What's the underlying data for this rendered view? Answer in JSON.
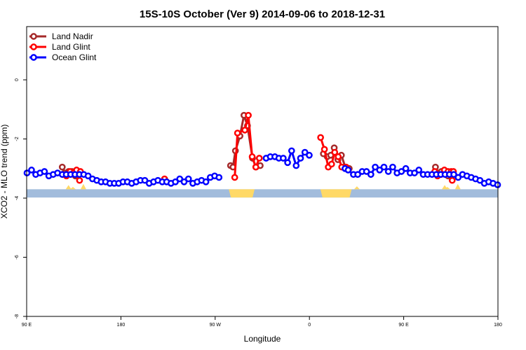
{
  "chart_data": {
    "type": "line",
    "title": "15S-10S October (Ver 9)   2014-09-06 to 2018-12-31",
    "xlabel": "Longitude",
    "ylabel": "XCO2 - MLO trend (ppm)",
    "xlim": [
      -90,
      180
    ],
    "ylim": [
      -8,
      1.8
    ],
    "x_ticks": [
      {
        "value": -90,
        "label": "90 E"
      },
      {
        "value": -36,
        "label": "180"
      },
      {
        "value": 18,
        "label": "90 W"
      },
      {
        "value": 72,
        "label": "0"
      },
      {
        "value": 126,
        "label": "90 E"
      },
      {
        "value": 180,
        "label": "180"
      }
    ],
    "y_ticks": [
      0,
      -2,
      -4,
      -6,
      -8
    ],
    "legend_position": "top-left",
    "series": [
      {
        "name": "Land Nadir",
        "color": "#a52a2a",
        "segments": [
          [
            [
              -69.6,
              -2.95
            ],
            [
              -68.2,
              -3.15
            ],
            [
              -66,
              -3.1
            ],
            [
              -64,
              -3.1
            ],
            [
              -62.1,
              -3.25
            ],
            [
              -60.3,
              -3.2
            ]
          ],
          [
            [
              26.8,
              -2.9
            ],
            [
              28.2,
              -2.95
            ],
            [
              29.6,
              -2.4
            ],
            [
              32.2,
              -1.9
            ],
            [
              34.5,
              -1.2
            ],
            [
              36.5,
              -1.55
            ],
            [
              39.4,
              -2.65
            ],
            [
              41.3,
              -2.95
            ],
            [
              43.8,
              -2.9
            ]
          ],
          [
            [
              80,
              -2.5
            ],
            [
              82.2,
              -2.6
            ],
            [
              84.2,
              -2.55
            ],
            [
              86.2,
              -2.3
            ],
            [
              88.3,
              -2.7
            ],
            [
              90.3,
              -2.55
            ],
            [
              92.8,
              -3.0
            ],
            [
              94.8,
              -3.0
            ]
          ],
          [
            [
              144.2,
              -2.95
            ],
            [
              145.8,
              -3.15
            ],
            [
              147.6,
              -3.1
            ],
            [
              149.6,
              -3.1
            ],
            [
              151.4,
              -3.25
            ],
            [
              153.6,
              -3.2
            ]
          ]
        ]
      },
      {
        "name": "Land Glint",
        "color": "#ff0000",
        "segments": [
          [
            [
              -69.4,
              -3.2
            ],
            [
              -67.2,
              -3.25
            ],
            [
              -65.1,
              -3.1
            ],
            [
              -63.1,
              -3.15
            ],
            [
              -61.4,
              -3.05
            ],
            [
              -59.7,
              -3.4
            ],
            [
              -59.2,
              -3.1
            ]
          ],
          [
            [
              -11,
              -3.35
            ]
          ],
          [
            [
              29.2,
              -3.3
            ],
            [
              30.8,
              -1.8
            ],
            [
              35,
              -1.7
            ],
            [
              37,
              -1.2
            ],
            [
              39.2,
              -2.6
            ],
            [
              41.3,
              -2.95
            ],
            [
              43.3,
              -2.65
            ]
          ],
          [
            [
              78.4,
              -1.95
            ],
            [
              80.6,
              -2.35
            ],
            [
              82.8,
              -2.95
            ],
            [
              84.7,
              -2.85
            ],
            [
              86.5,
              -2.45
            ],
            [
              88.5,
              -2.6
            ],
            [
              90.5,
              -2.95
            ],
            [
              93,
              -2.95
            ]
          ],
          [
            [
              143.8,
              -3.1
            ],
            [
              145.4,
              -3.25
            ],
            [
              147.4,
              -3.2
            ],
            [
              149.3,
              -3.05
            ],
            [
              151.4,
              -3.1
            ],
            [
              153.2,
              -3.1
            ],
            [
              153.8,
              -3.4
            ],
            [
              154.5,
              -3.1
            ]
          ]
        ]
      },
      {
        "name": "Ocean Glint",
        "color": "#0000ff",
        "segments": [
          [
            [
              -89.8,
              -3.15
            ],
            [
              -87.2,
              -3.05
            ],
            [
              -84.8,
              -3.2
            ],
            [
              -82.3,
              -3.15
            ],
            [
              -79.8,
              -3.1
            ],
            [
              -77.3,
              -3.25
            ],
            [
              -74.8,
              -3.2
            ],
            [
              -72.3,
              -3.15
            ],
            [
              -69.6,
              -3.2
            ],
            [
              -67.3,
              -3.2
            ],
            [
              -64.8,
              -3.2
            ],
            [
              -62.3,
              -3.2
            ],
            [
              -59.8,
              -3.2
            ],
            [
              -57.3,
              -3.2
            ],
            [
              -54.8,
              -3.25
            ],
            [
              -52.3,
              -3.35
            ],
            [
              -49.8,
              -3.4
            ],
            [
              -47.3,
              -3.45
            ],
            [
              -44.8,
              -3.45
            ],
            [
              -42.3,
              -3.5
            ],
            [
              -39.8,
              -3.5
            ],
            [
              -37.3,
              -3.5
            ],
            [
              -34.8,
              -3.45
            ],
            [
              -32.3,
              -3.45
            ],
            [
              -29.8,
              -3.5
            ],
            [
              -27.3,
              -3.45
            ],
            [
              -24.8,
              -3.4
            ],
            [
              -22.3,
              -3.4
            ],
            [
              -19.8,
              -3.5
            ],
            [
              -17.3,
              -3.45
            ],
            [
              -14.8,
              -3.4
            ],
            [
              -12.3,
              -3.45
            ],
            [
              -9.8,
              -3.45
            ],
            [
              -7.3,
              -3.5
            ],
            [
              -4.8,
              -3.45
            ],
            [
              -2.3,
              -3.35
            ],
            [
              0.2,
              -3.45
            ],
            [
              2.7,
              -3.35
            ],
            [
              5.2,
              -3.5
            ],
            [
              7.7,
              -3.45
            ],
            [
              10.2,
              -3.4
            ],
            [
              12.7,
              -3.45
            ],
            [
              15.2,
              -3.3
            ],
            [
              17.7,
              -3.25
            ],
            [
              20.2,
              -3.3
            ]
          ],
          [
            [
              47.2,
              -2.65
            ],
            [
              49.6,
              -2.6
            ],
            [
              52.2,
              -2.6
            ],
            [
              54.5,
              -2.65
            ],
            [
              57,
              -2.65
            ],
            [
              59.5,
              -2.8
            ],
            [
              61.8,
              -2.4
            ],
            [
              64.4,
              -2.9
            ],
            [
              66.9,
              -2.65
            ],
            [
              69.4,
              -2.45
            ],
            [
              71.9,
              -2.55
            ]
          ],
          [
            [
              92.4,
              -3.0
            ],
            [
              94.2,
              -3.05
            ],
            [
              97.2,
              -3.2
            ],
            [
              99.7,
              -3.2
            ],
            [
              102.2,
              -3.1
            ],
            [
              104.7,
              -3.1
            ],
            [
              107.2,
              -3.2
            ],
            [
              109.7,
              -2.95
            ],
            [
              112.2,
              -3.05
            ],
            [
              114.7,
              -2.95
            ],
            [
              117.2,
              -3.1
            ],
            [
              119.7,
              -2.95
            ],
            [
              122.2,
              -3.15
            ],
            [
              124.7,
              -3.1
            ],
            [
              127.2,
              -3.0
            ],
            [
              129.7,
              -3.15
            ],
            [
              132.2,
              -3.15
            ],
            [
              134.7,
              -3.05
            ],
            [
              137.2,
              -3.2
            ],
            [
              139.7,
              -3.2
            ],
            [
              142.2,
              -3.2
            ],
            [
              144.7,
              -3.2
            ],
            [
              147.2,
              -3.2
            ],
            [
              149.7,
              -3.2
            ],
            [
              152.2,
              -3.2
            ],
            [
              154.7,
              -3.2
            ],
            [
              157.2,
              -3.3
            ],
            [
              159.7,
              -3.2
            ],
            [
              162.2,
              -3.25
            ],
            [
              164.7,
              -3.3
            ],
            [
              167.2,
              -3.35
            ],
            [
              169.7,
              -3.4
            ],
            [
              172.2,
              -3.5
            ],
            [
              174.7,
              -3.45
            ],
            [
              177.2,
              -3.5
            ],
            [
              179.8,
              -3.55
            ]
          ]
        ]
      }
    ],
    "land_ocean_band": {
      "y_range": [
        -3.98,
        -3.7
      ],
      "ocean_color": "#a2bcdc",
      "land_color": "#ffd966",
      "land_intervals": [
        [
          25.8,
          40.6
        ],
        [
          78.3,
          96.2
        ]
      ],
      "land_spikes": [
        {
          "x": -66,
          "height": 0.14
        },
        {
          "x": -63.5,
          "height": 0.08
        },
        {
          "x": -57.5,
          "height": 0.18
        },
        {
          "x": 99.2,
          "height": 0.1
        },
        {
          "x": 149.5,
          "height": 0.14
        },
        {
          "x": 151,
          "height": 0.08
        },
        {
          "x": 157,
          "height": 0.18
        }
      ]
    }
  }
}
